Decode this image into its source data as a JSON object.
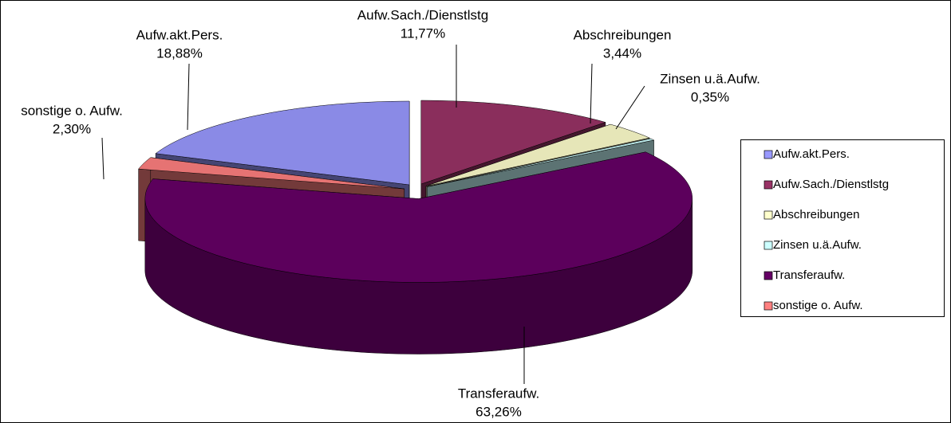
{
  "chart_data": {
    "type": "pie",
    "categories": [
      "Aufw.akt.Pers.",
      "Aufw.Sach./Dienstlstg",
      "Abschreibungen",
      "Zinsen u.ä.Aufw.",
      "Transferaufw.",
      "sonstige o. Aufw."
    ],
    "values": [
      18.88,
      11.77,
      3.44,
      0.35,
      63.26,
      2.3
    ],
    "value_labels": [
      "18,88%",
      "11,77%",
      "3,44%",
      "0,35%",
      "63,26%",
      "2,30%"
    ],
    "colors": [
      "#9999ff",
      "#993366",
      "#ffffcc",
      "#ccffff",
      "#660066",
      "#ff8080"
    ],
    "legend": "right"
  }
}
